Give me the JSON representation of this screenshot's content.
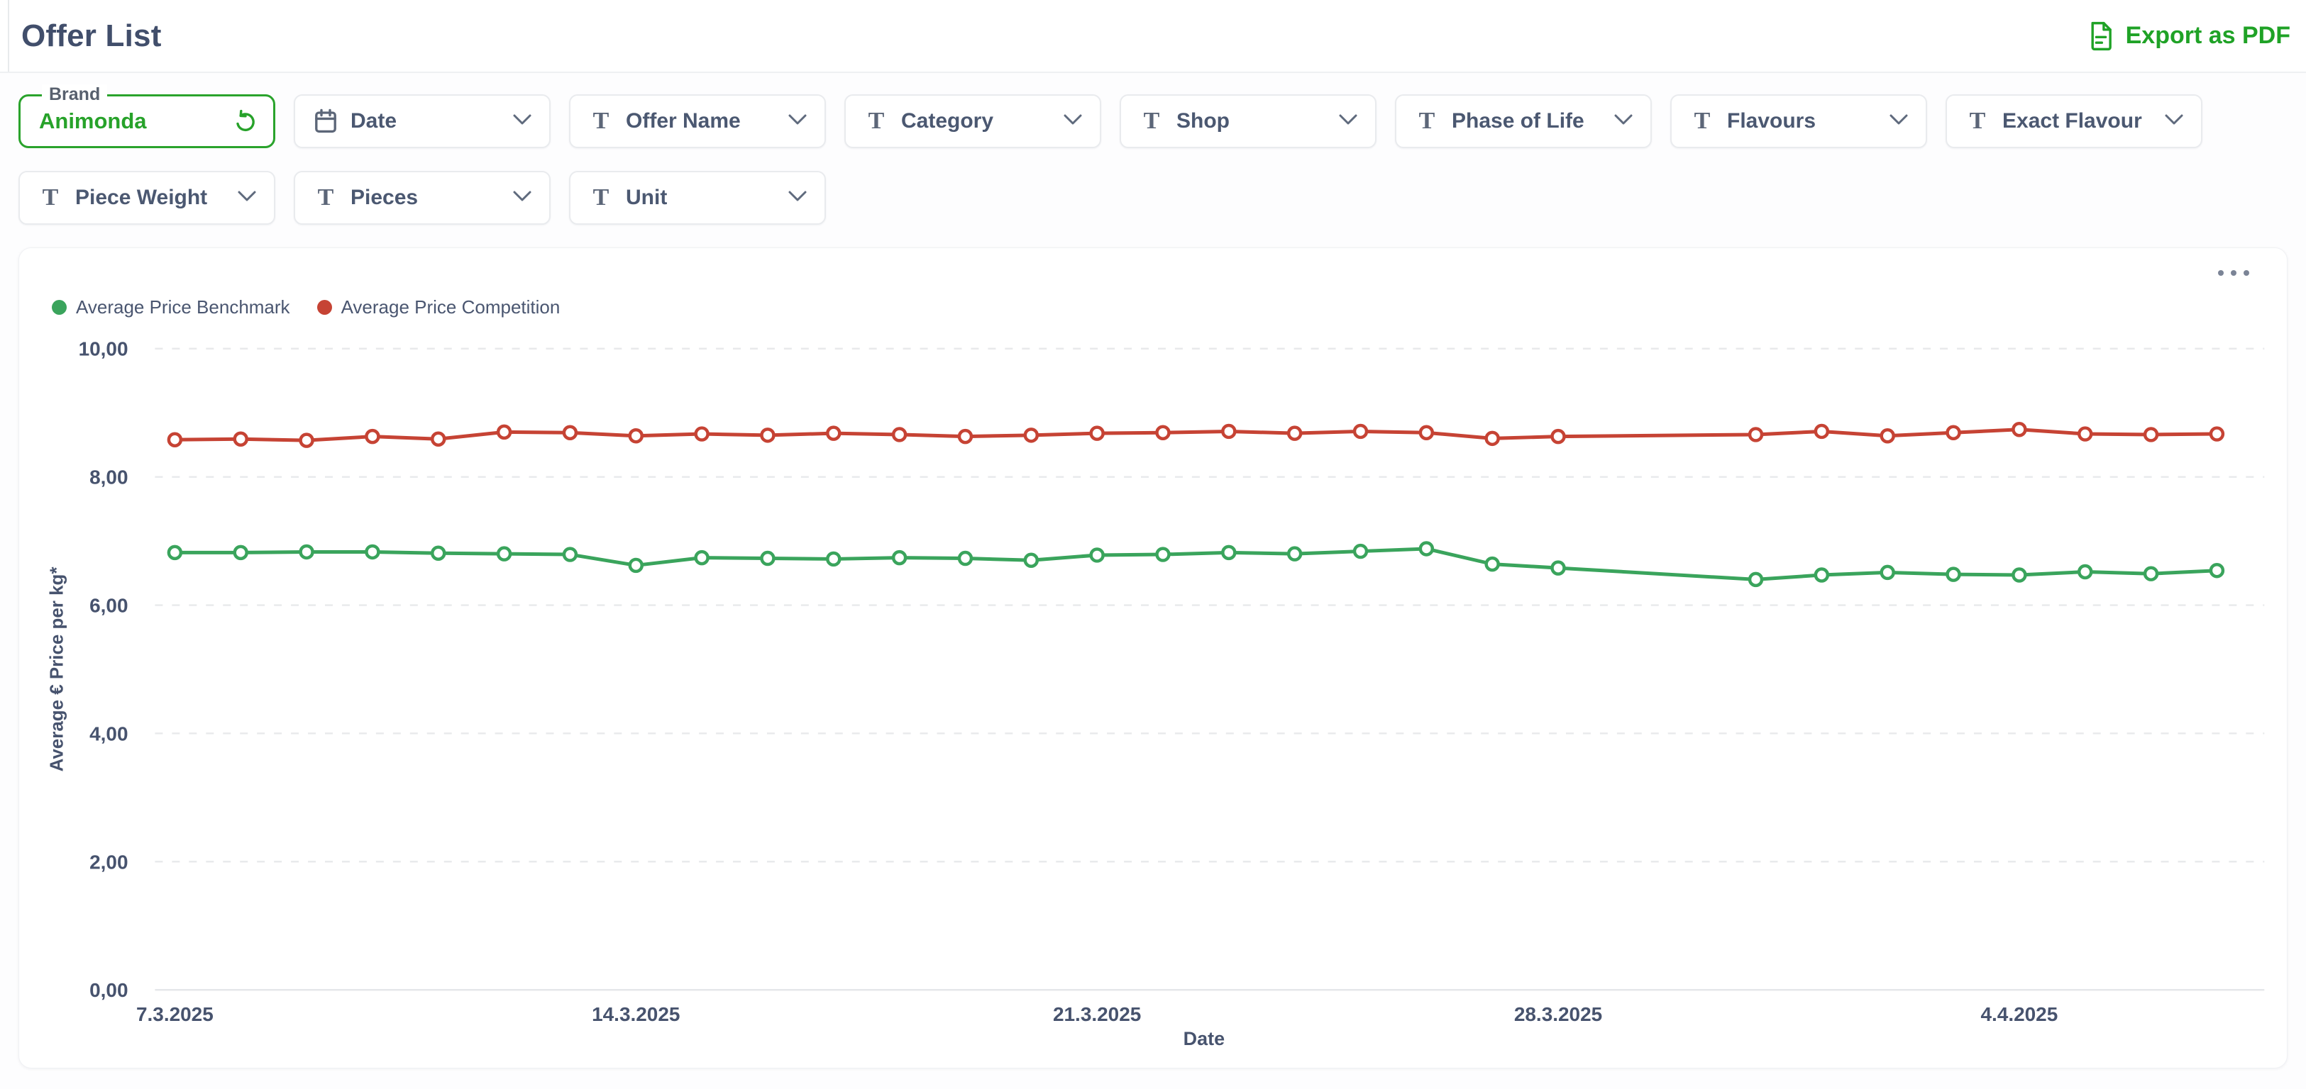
{
  "header": {
    "title": "Offer List",
    "export_label": "Export as PDF"
  },
  "filters": {
    "brand": {
      "label": "Brand",
      "value": "Animonda"
    },
    "row1": [
      {
        "label": "Date",
        "icon": "calendar-icon"
      },
      {
        "label": "Offer Name",
        "icon": "text-icon"
      },
      {
        "label": "Category",
        "icon": "text-icon"
      },
      {
        "label": "Shop",
        "icon": "text-icon"
      },
      {
        "label": "Phase of Life",
        "icon": "text-icon"
      },
      {
        "label": "Flavours",
        "icon": "text-icon"
      },
      {
        "label": "Exact Flavour",
        "icon": "text-icon"
      }
    ],
    "row2": [
      {
        "label": "Piece Weight",
        "icon": "text-icon"
      },
      {
        "label": "Pieces",
        "icon": "text-icon"
      },
      {
        "label": "Unit",
        "icon": "text-icon"
      }
    ]
  },
  "chart_data": {
    "type": "line",
    "title": "",
    "xlabel": "Date",
    "ylabel": "Average € Price per kg*",
    "ylim": [
      0,
      10
    ],
    "grid": "horizontal-dashed",
    "legend_position": "top-left",
    "x": [
      "7.3.2025",
      "8.3.2025",
      "9.3.2025",
      "10.3.2025",
      "11.3.2025",
      "12.3.2025",
      "13.3.2025",
      "14.3.2025",
      "15.3.2025",
      "16.3.2025",
      "17.3.2025",
      "18.3.2025",
      "19.3.2025",
      "20.3.2025",
      "21.3.2025",
      "22.3.2025",
      "23.3.2025",
      "24.3.2025",
      "25.3.2025",
      "26.3.2025",
      "27.3.2025",
      "28.3.2025",
      "31.3.2025",
      "1.4.2025",
      "2.4.2025",
      "3.4.2025",
      "4.4.2025",
      "5.4.2025",
      "6.4.2025",
      "7.4.2025"
    ],
    "x_day_offsets": [
      0,
      1,
      2,
      3,
      4,
      5,
      6,
      7,
      8,
      9,
      10,
      11,
      12,
      13,
      14,
      15,
      16,
      17,
      18,
      19,
      20,
      21,
      24,
      25,
      26,
      27,
      28,
      29,
      30,
      31
    ],
    "series": [
      {
        "name": "Average Price Benchmark",
        "color": "#3aa45c",
        "values": [
          6.82,
          6.82,
          6.83,
          6.83,
          6.81,
          6.8,
          6.79,
          6.62,
          6.74,
          6.73,
          6.72,
          6.74,
          6.73,
          6.7,
          6.78,
          6.79,
          6.82,
          6.8,
          6.84,
          6.88,
          6.64,
          6.58,
          6.4,
          6.47,
          6.51,
          6.48,
          6.47,
          6.52,
          6.49,
          6.54
        ]
      },
      {
        "name": "Average Price Competition",
        "color": "#c64334",
        "values": [
          8.58,
          8.59,
          8.57,
          8.63,
          8.59,
          8.7,
          8.69,
          8.64,
          8.67,
          8.65,
          8.68,
          8.66,
          8.63,
          8.65,
          8.68,
          8.69,
          8.71,
          8.68,
          8.71,
          8.69,
          8.6,
          8.63,
          8.66,
          8.71,
          8.64,
          8.69,
          8.74,
          8.67,
          8.66,
          8.67
        ]
      }
    ],
    "y_ticks": [
      {
        "label": "0,00",
        "value": 0
      },
      {
        "label": "2,00",
        "value": 2
      },
      {
        "label": "4,00",
        "value": 4
      },
      {
        "label": "6,00",
        "value": 6
      },
      {
        "label": "8,00",
        "value": 8
      },
      {
        "label": "10,00",
        "value": 10
      }
    ],
    "x_ticks": [
      {
        "label": "7.3.2025",
        "day": 0
      },
      {
        "label": "14.3.2025",
        "day": 7
      },
      {
        "label": "21.3.2025",
        "day": 14
      },
      {
        "label": "28.3.2025",
        "day": 21
      },
      {
        "label": "4.4.2025",
        "day": 28
      }
    ]
  }
}
